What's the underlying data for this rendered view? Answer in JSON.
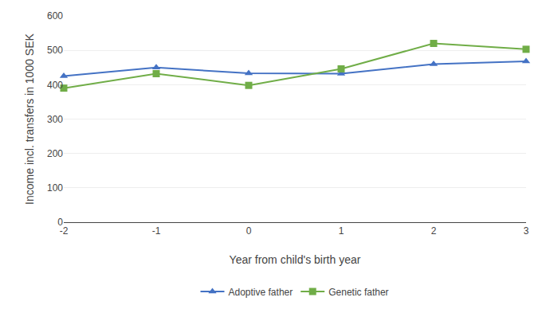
{
  "chart_data": {
    "type": "line",
    "x": [
      -2,
      -1,
      0,
      1,
      2,
      3
    ],
    "series": [
      {
        "name": "Adoptive father",
        "color": "#4472C4",
        "marker": "triangle",
        "values": [
          425,
          450,
          433,
          432,
          460,
          468
        ]
      },
      {
        "name": "Genetic father",
        "color": "#70AD47",
        "marker": "square",
        "values": [
          390,
          432,
          398,
          446,
          520,
          503
        ]
      }
    ],
    "xlabel": "Year from child's birth year",
    "ylabel": "Income incl. transfers in 1000 SEK",
    "xlim": [
      -2,
      3
    ],
    "xticks": [
      -2,
      -1,
      0,
      1,
      2,
      3
    ],
    "ylim": [
      0,
      600
    ],
    "yticks": [
      0,
      100,
      200,
      300,
      400,
      500,
      600
    ],
    "grid": true,
    "legend": "bottom"
  }
}
